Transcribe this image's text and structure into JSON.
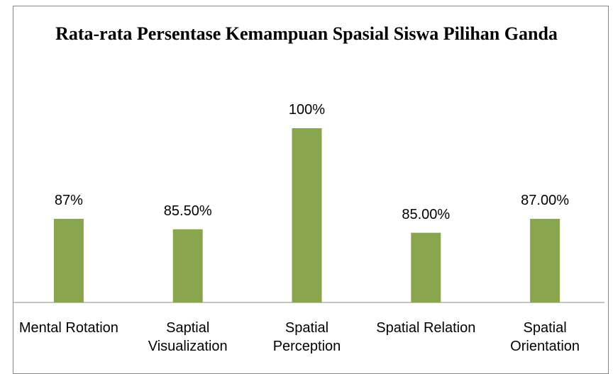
{
  "chart_data": {
    "type": "bar",
    "title": "Rata-rata Persentase Kemampuan Spasial Siswa Pilihan Ganda",
    "categories": [
      "Mental Rotation",
      "Saptial Visualization",
      "Spatial Perception",
      "Spatial Relation",
      "Spatial Orientation"
    ],
    "values": [
      87,
      85.5,
      100,
      85,
      87
    ],
    "value_labels": [
      "87%",
      "85.50%",
      "100%",
      "85.00%",
      "87.00%"
    ],
    "color": "#89a54e",
    "ylim": [
      75,
      100
    ]
  }
}
